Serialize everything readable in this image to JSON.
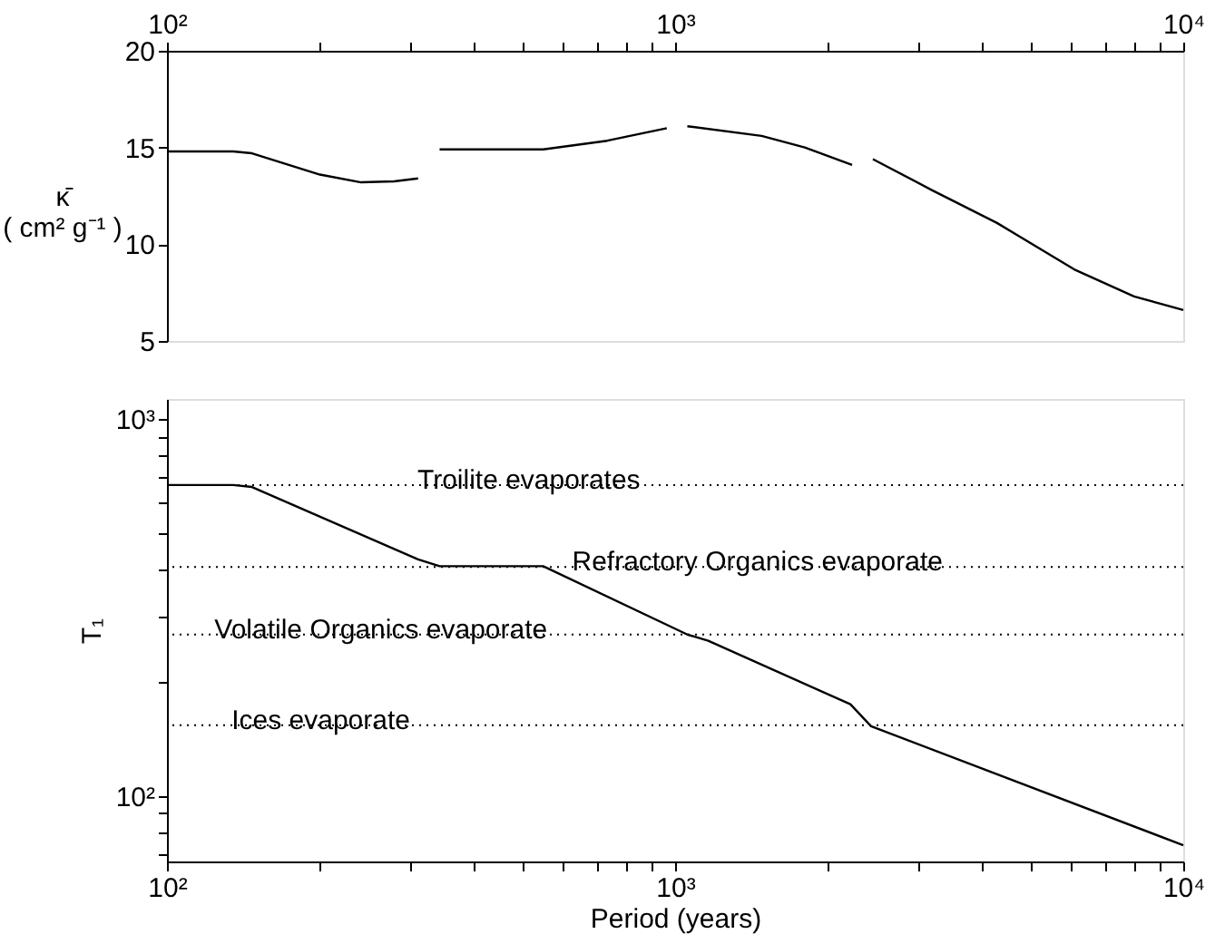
{
  "chart_data": [
    {
      "type": "line",
      "ylabel": "κ̄\n( cm² g⁻¹ )",
      "log": "x",
      "grid": false,
      "marker": "none",
      "line_style": "solid",
      "xlim": [
        100,
        10000
      ],
      "xticks": [
        {
          "value": 100,
          "label": "10²"
        },
        {
          "value": 200,
          "label": null
        },
        {
          "value": 300,
          "label": null
        },
        {
          "value": 400,
          "label": null
        },
        {
          "value": 500,
          "label": null
        },
        {
          "value": 600,
          "label": null
        },
        {
          "value": 700,
          "label": null
        },
        {
          "value": 800,
          "label": null
        },
        {
          "value": 900,
          "label": null
        },
        {
          "value": 1000,
          "label": "10³"
        },
        {
          "value": 2000,
          "label": null
        },
        {
          "value": 3000,
          "label": null
        },
        {
          "value": 4000,
          "label": null
        },
        {
          "value": 5000,
          "label": null
        },
        {
          "value": 6000,
          "label": null
        },
        {
          "value": 7000,
          "label": null
        },
        {
          "value": 8000,
          "label": null
        },
        {
          "value": 9000,
          "label": null
        },
        {
          "value": 10000,
          "label": "10⁴"
        }
      ],
      "ylim": [
        5,
        20
      ],
      "yticks": [
        5,
        10,
        15,
        20
      ],
      "series": [
        {
          "color": "#000000",
          "x": [
            100,
            135,
            147,
            200,
            241,
            280,
            312,
            328,
            344,
            550,
            735,
            963,
            1010,
            1057,
            1480,
            1800,
            2230,
            2330,
            2450,
            3200,
            4300,
            6100,
            8000,
            10000
          ],
          "values": [
            14.8,
            14.8,
            14.7,
            13.6,
            13.2,
            13.25,
            13.4,
            null,
            14.9,
            14.9,
            15.35,
            16.0,
            null,
            16.1,
            15.6,
            15.0,
            14.1,
            null,
            14.4,
            12.8,
            11.1,
            8.7,
            7.3,
            6.6
          ]
        }
      ]
    },
    {
      "type": "line",
      "xlabel": "Period (years)",
      "ylabel": "T₁",
      "log": "xy",
      "grid": false,
      "marker": "none",
      "line_style": "solid",
      "xlim": [
        100,
        10000
      ],
      "xticks": [
        {
          "value": 100,
          "label": "10²"
        },
        {
          "value": 200,
          "label": null
        },
        {
          "value": 300,
          "label": null
        },
        {
          "value": 400,
          "label": null
        },
        {
          "value": 500,
          "label": null
        },
        {
          "value": 600,
          "label": null
        },
        {
          "value": 700,
          "label": null
        },
        {
          "value": 800,
          "label": null
        },
        {
          "value": 900,
          "label": null
        },
        {
          "value": 1000,
          "label": "10³"
        },
        {
          "value": 2000,
          "label": null
        },
        {
          "value": 3000,
          "label": null
        },
        {
          "value": 4000,
          "label": null
        },
        {
          "value": 5000,
          "label": null
        },
        {
          "value": 6000,
          "label": null
        },
        {
          "value": 7000,
          "label": null
        },
        {
          "value": 8000,
          "label": null
        },
        {
          "value": 9000,
          "label": null
        },
        {
          "value": 10000,
          "label": "10⁴"
        }
      ],
      "ylim": [
        67,
        1130
      ],
      "yticks": [
        {
          "value": 70,
          "label": null
        },
        {
          "value": 80,
          "label": null
        },
        {
          "value": 90,
          "label": null
        },
        {
          "value": 100,
          "label": "10²"
        },
        {
          "value": 200,
          "label": null
        },
        {
          "value": 300,
          "label": null
        },
        {
          "value": 400,
          "label": null
        },
        {
          "value": 500,
          "label": null
        },
        {
          "value": 600,
          "label": null
        },
        {
          "value": 700,
          "label": null
        },
        {
          "value": 800,
          "label": null
        },
        {
          "value": 900,
          "label": null
        },
        {
          "value": 1000,
          "label": "10³"
        }
      ],
      "series": [
        {
          "color": "#000000",
          "x": [
            100,
            135,
            147,
            312,
            344,
            550,
            1057,
            1162,
            2213,
            2430,
            10000
          ],
          "values": [
            668,
            668,
            660,
            424,
            407,
            407,
            268,
            258,
            175,
            153,
            74
          ]
        }
      ],
      "ref_lines": [
        {
          "axis": "y",
          "value": 668,
          "color": "#000000",
          "line_style": "dotted"
        },
        {
          "axis": "y",
          "value": 405,
          "color": "#000000",
          "line_style": "dotted"
        },
        {
          "axis": "y",
          "value": 268,
          "color": "#000000",
          "line_style": "dotted"
        },
        {
          "axis": "y",
          "value": 154,
          "color": "#000000",
          "line_style": "dotted"
        }
      ],
      "annotations": [
        {
          "text": "Troilite evaporates",
          "x": 311,
          "y": 668
        },
        {
          "text": "Refractory Organics evaporate",
          "x": 627,
          "y": 405
        },
        {
          "text": "Volatile Organics evaporate",
          "x": 124,
          "y": 268
        },
        {
          "text": "Ices evaporate",
          "x": 134,
          "y": 154
        }
      ]
    }
  ]
}
